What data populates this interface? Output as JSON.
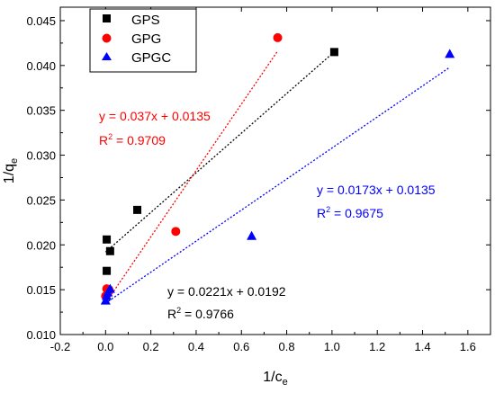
{
  "chart_data": {
    "type": "scatter",
    "title": "",
    "xlabel": "1/c",
    "xlabel_sub": "e",
    "ylabel": "1/q",
    "ylabel_sub": "e",
    "xlim": [
      -0.2,
      1.7
    ],
    "ylim": [
      0.01,
      0.0465
    ],
    "x_ticks": [
      -0.2,
      0.0,
      0.2,
      0.4,
      0.6,
      0.8,
      1.0,
      1.2,
      1.4,
      1.6
    ],
    "x_tick_labels": [
      "-0.2",
      "0.0",
      "0.2",
      "0.4",
      "0.6",
      "0.8",
      "1.0",
      "1.2",
      "1.4",
      "1.6"
    ],
    "y_ticks": [
      0.01,
      0.015,
      0.02,
      0.025,
      0.03,
      0.035,
      0.04,
      0.045
    ],
    "y_tick_labels": [
      "0.010",
      "0.015",
      "0.020",
      "0.025",
      "0.030",
      "0.035",
      "0.040",
      "0.045"
    ],
    "legend_position": "top-left",
    "series": [
      {
        "name": "GPS",
        "marker": "square",
        "color": "#000000",
        "points": [
          [
            0.005,
            0.0171
          ],
          [
            0.005,
            0.0206
          ],
          [
            0.02,
            0.0193
          ],
          [
            0.14,
            0.0239
          ],
          [
            1.01,
            0.0415
          ]
        ],
        "fit": {
          "slope": 0.0221,
          "intercept": 0.0192,
          "x_range": [
            0.0,
            1.01
          ]
        },
        "equation_text": "y = 0.0221x + 0.0192",
        "r2_prefix": "R",
        "r2_exp": "2",
        "r2_value": " = 0.9766"
      },
      {
        "name": "GPG",
        "marker": "circle",
        "color": "#ff0000",
        "points": [
          [
            0.0,
            0.0143
          ],
          [
            0.005,
            0.0151
          ],
          [
            0.015,
            0.015
          ],
          [
            0.31,
            0.0215
          ],
          [
            0.76,
            0.0431
          ]
        ],
        "fit": {
          "slope": 0.037,
          "intercept": 0.0135,
          "x_range": [
            0.0,
            0.76
          ]
        },
        "equation_text": "y = 0.037x + 0.0135",
        "r2_prefix": "R",
        "r2_exp": "2",
        "r2_value": " = 0.9709"
      },
      {
        "name": "GPGC",
        "marker": "triangle",
        "color": "#0000ff",
        "points": [
          [
            0.0,
            0.0138
          ],
          [
            0.005,
            0.0143
          ],
          [
            0.01,
            0.0147
          ],
          [
            0.02,
            0.0151
          ],
          [
            0.645,
            0.021
          ],
          [
            1.52,
            0.0413
          ]
        ],
        "fit": {
          "slope": 0.0173,
          "intercept": 0.0135,
          "x_range": [
            0.0,
            1.52
          ]
        },
        "equation_text": "y = 0.0173x + 0.0135",
        "r2_prefix": "R",
        "r2_exp": "2",
        "r2_value": " = 0.9675"
      }
    ]
  }
}
